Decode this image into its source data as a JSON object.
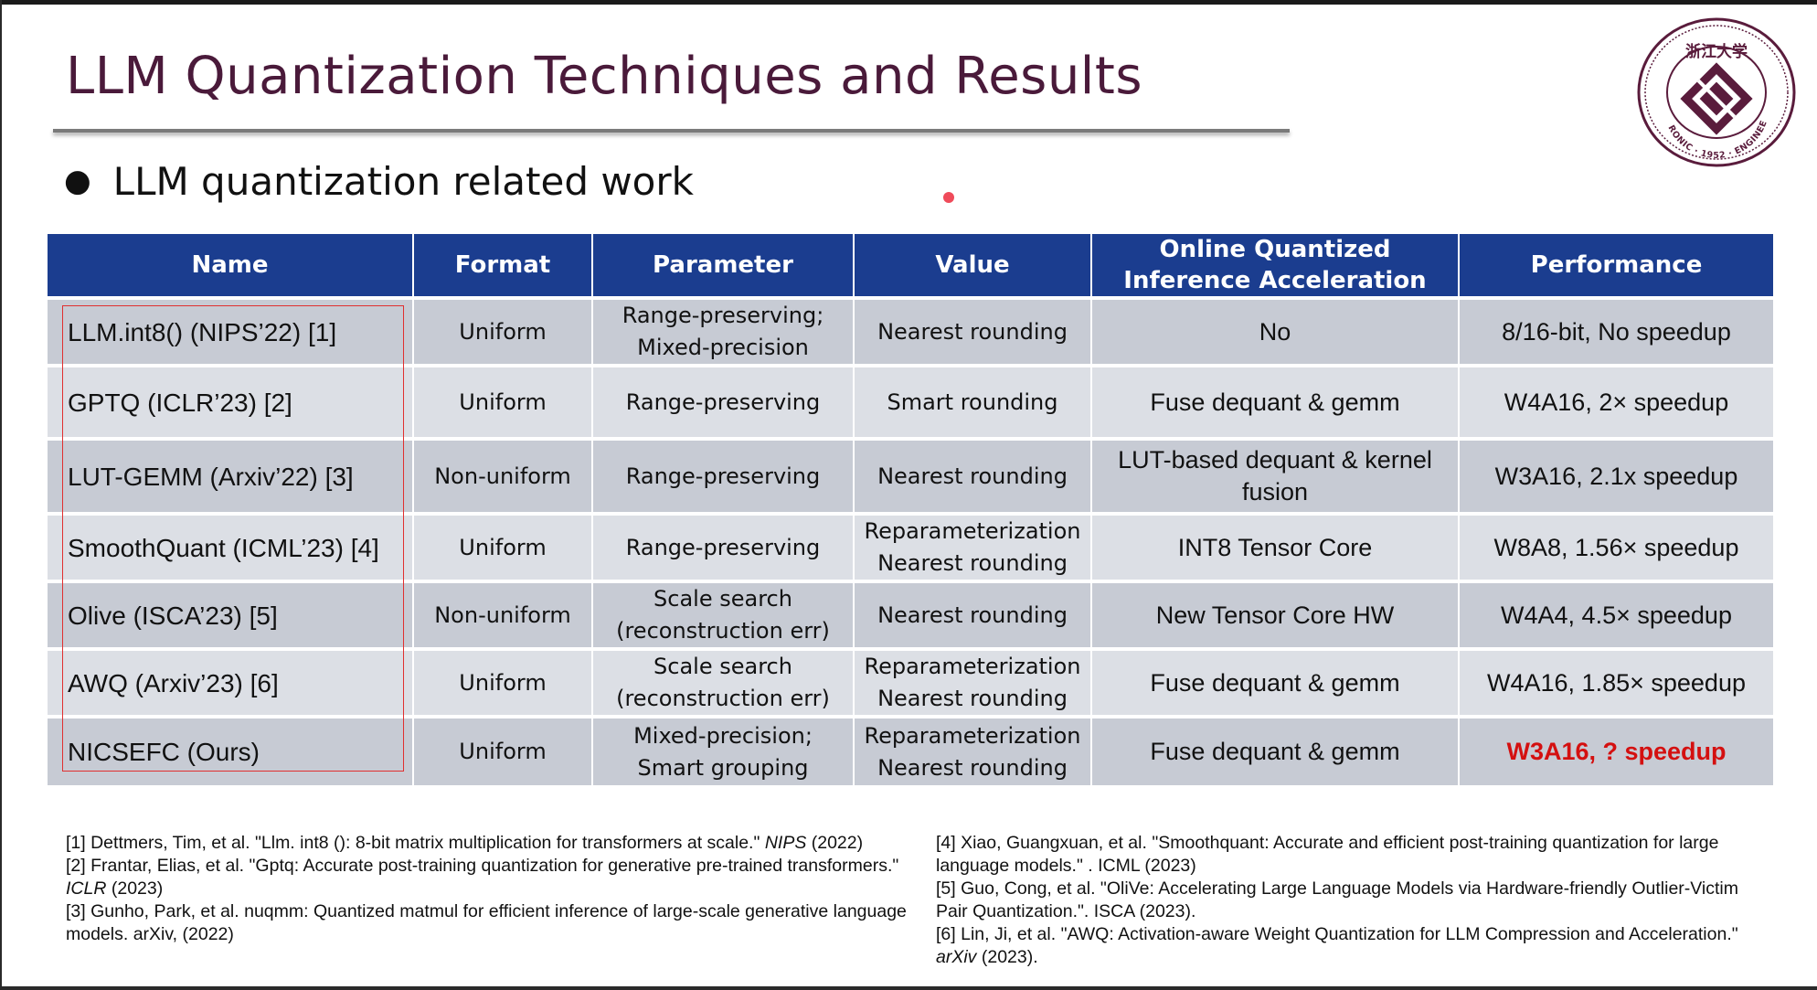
{
  "slide": {
    "title": "LLM Quantization Techniques and Results",
    "bullet": "LLM quantization related work",
    "seal": {
      "text_top": "浙江大学",
      "text_ring": "ELECTRONIC · 1952 · ENGINEERING"
    }
  },
  "table": {
    "headers": [
      "Name",
      "Format",
      "Parameter",
      "Value",
      "Online Quantized Inference Acceleration",
      "Performance"
    ],
    "rows": [
      {
        "name": "LLM.int8()  (NIPS’22) [1]",
        "format": "Uniform",
        "parameter": [
          "Range-preserving;",
          "Mixed-precision"
        ],
        "value": [
          "Nearest rounding"
        ],
        "acceleration": [
          "No"
        ],
        "performance": "8/16-bit, No speedup"
      },
      {
        "name": "GPTQ (ICLR’23) [2]",
        "format": "Uniform",
        "parameter": [
          "Range-preserving"
        ],
        "value": [
          "Smart rounding"
        ],
        "acceleration": [
          "Fuse dequant & gemm"
        ],
        "performance": "W4A16, 2× speedup"
      },
      {
        "name": "LUT-GEMM (Arxiv’22) [3]",
        "format": "Non-uniform",
        "parameter": [
          "Range-preserving"
        ],
        "value": [
          "Nearest rounding"
        ],
        "acceleration": [
          "LUT-based dequant & kernel",
          "fusion"
        ],
        "performance": "W3A16, 2.1x speedup"
      },
      {
        "name": "SmoothQuant (ICML’23) [4]",
        "format": "Uniform",
        "parameter": [
          "Range-preserving"
        ],
        "value": [
          "Reparameterization",
          "Nearest rounding"
        ],
        "acceleration": [
          "INT8 Tensor Core"
        ],
        "performance": "W8A8, 1.56× speedup"
      },
      {
        "name": "Olive (ISCA’23) [5]",
        "format": "Non-uniform",
        "parameter": [
          "Scale search",
          "(reconstruction err)"
        ],
        "value": [
          "Nearest rounding"
        ],
        "acceleration": [
          "New Tensor Core HW"
        ],
        "performance": "W4A4, 4.5× speedup"
      },
      {
        "name": "AWQ (Arxiv’23) [6]",
        "format": "Uniform",
        "parameter": [
          "Scale search",
          "(reconstruction err)"
        ],
        "value": [
          "Reparameterization",
          "Nearest rounding"
        ],
        "acceleration": [
          "Fuse dequant & gemm"
        ],
        "performance": "W4A16, 1.85× speedup"
      },
      {
        "name": "NICSEFC (Ours)",
        "format": "Uniform",
        "parameter": [
          "Mixed-precision;",
          "Smart grouping"
        ],
        "value": [
          "Reparameterization",
          "Nearest rounding"
        ],
        "acceleration": [
          "Fuse dequant & gemm"
        ],
        "performance": "W3A16, ? speedup",
        "highlight": true
      }
    ]
  },
  "references": {
    "left": [
      {
        "text": "[1] Dettmers, Tim, et al. \"Llm. int8 (): 8-bit matrix multiplication for transformers at scale.\" ",
        "venue": "NIPS",
        "tail": " (2022)"
      },
      {
        "text": "[2] Frantar, Elias, et al. \"Gptq: Accurate post-training quantization for generative pre-trained transformers.\" ",
        "venue": "ICLR",
        "tail": " (2023)"
      },
      {
        "text": "[3] Gunho, Park, et al. nuqmm: Quantized matmul for efficient inference of large-scale generative language models. arXiv, (2022)",
        "venue": "",
        "tail": ""
      }
    ],
    "right": [
      {
        "text": "[4] Xiao, Guangxuan, et al. \"Smoothquant: Accurate and efficient post-training quantization for large language models.\" . ICML (2023)",
        "venue": "",
        "tail": ""
      },
      {
        "text": "[5] Guo, Cong, et al. \"OliVe: Accelerating Large Language Models via Hardware-friendly Outlier-Victim Pair Quantization.\". ISCA (2023).",
        "venue": "",
        "tail": ""
      },
      {
        "text": "[6] Lin, Ji, et al. \"AWQ: Activation-aware Weight Quantization for LLM Compression and Acceleration.\" ",
        "venue": "arXiv",
        "tail": " (2023)."
      }
    ]
  }
}
